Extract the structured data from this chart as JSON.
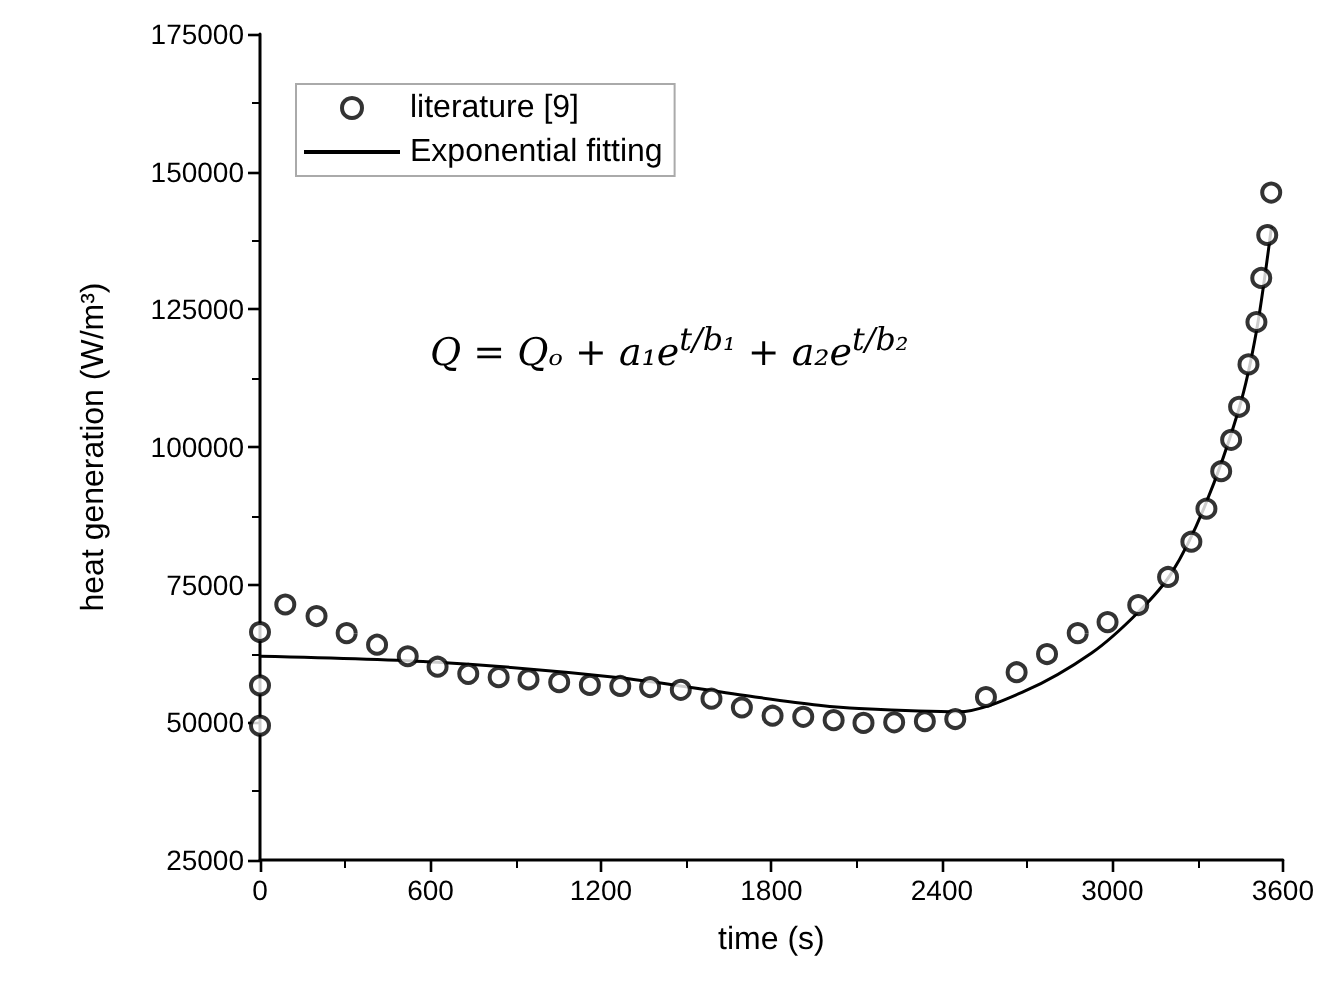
{
  "chart_data": {
    "type": "scatter",
    "xlabel": "time (s)",
    "ylabel": "heat generation (W/m³)",
    "xlim": [
      0,
      3600
    ],
    "xticks": [
      0,
      600,
      1200,
      1800,
      2400,
      3000,
      3600
    ],
    "ylim": [
      25000,
      175000
    ],
    "yticks": [
      25000,
      50000,
      75000,
      100000,
      125000,
      150000,
      175000
    ],
    "grid": false,
    "legend": "top left",
    "annotations": [
      "Q = Qₒ + a₁e$^{t/b₁}$ + a₂e$^{t/b₂}$"
    ],
    "series": [
      {
        "name": "literature [9]",
        "type": "scatter",
        "marker": "circle",
        "color": "#000000",
        "x": [
          0,
          0,
          0,
          89,
          199,
          305,
          412,
          520,
          625,
          733,
          840,
          945,
          1053,
          1161,
          1268,
          1373,
          1481,
          1589,
          1696,
          1804,
          1912,
          2019,
          2124,
          2232,
          2340,
          2447,
          2555,
          2663,
          2770,
          2878,
          2983,
          3091,
          3196,
          3278,
          3331,
          3383,
          3418,
          3446,
          3479,
          3507,
          3524,
          3545,
          3559
        ],
        "values": [
          66400,
          56700,
          49400,
          71400,
          69300,
          66200,
          64100,
          62000,
          60100,
          58800,
          58200,
          57800,
          57300,
          56800,
          56600,
          56400,
          55900,
          54300,
          52700,
          51200,
          51000,
          50400,
          49900,
          50000,
          50200,
          50600,
          54600,
          59100,
          62400,
          66200,
          68200,
          71300,
          76400,
          82800,
          88800,
          95600,
          101300,
          107300,
          115000,
          122700,
          130700,
          138500,
          146200
        ]
      },
      {
        "name": "Exponential fitting",
        "type": "line",
        "marker": "none",
        "color": "#000000",
        "x": [
          0,
          625,
          1266,
          1757,
          1967,
          2108,
          2457,
          2693,
          2927,
          3091,
          3208,
          3324,
          3446,
          3507,
          3560
        ],
        "values": [
          62000,
          60900,
          58100,
          54500,
          53100,
          52500,
          51900,
          55700,
          62600,
          70000,
          77100,
          89100,
          107000,
          121000,
          140000
        ]
      }
    ]
  }
}
